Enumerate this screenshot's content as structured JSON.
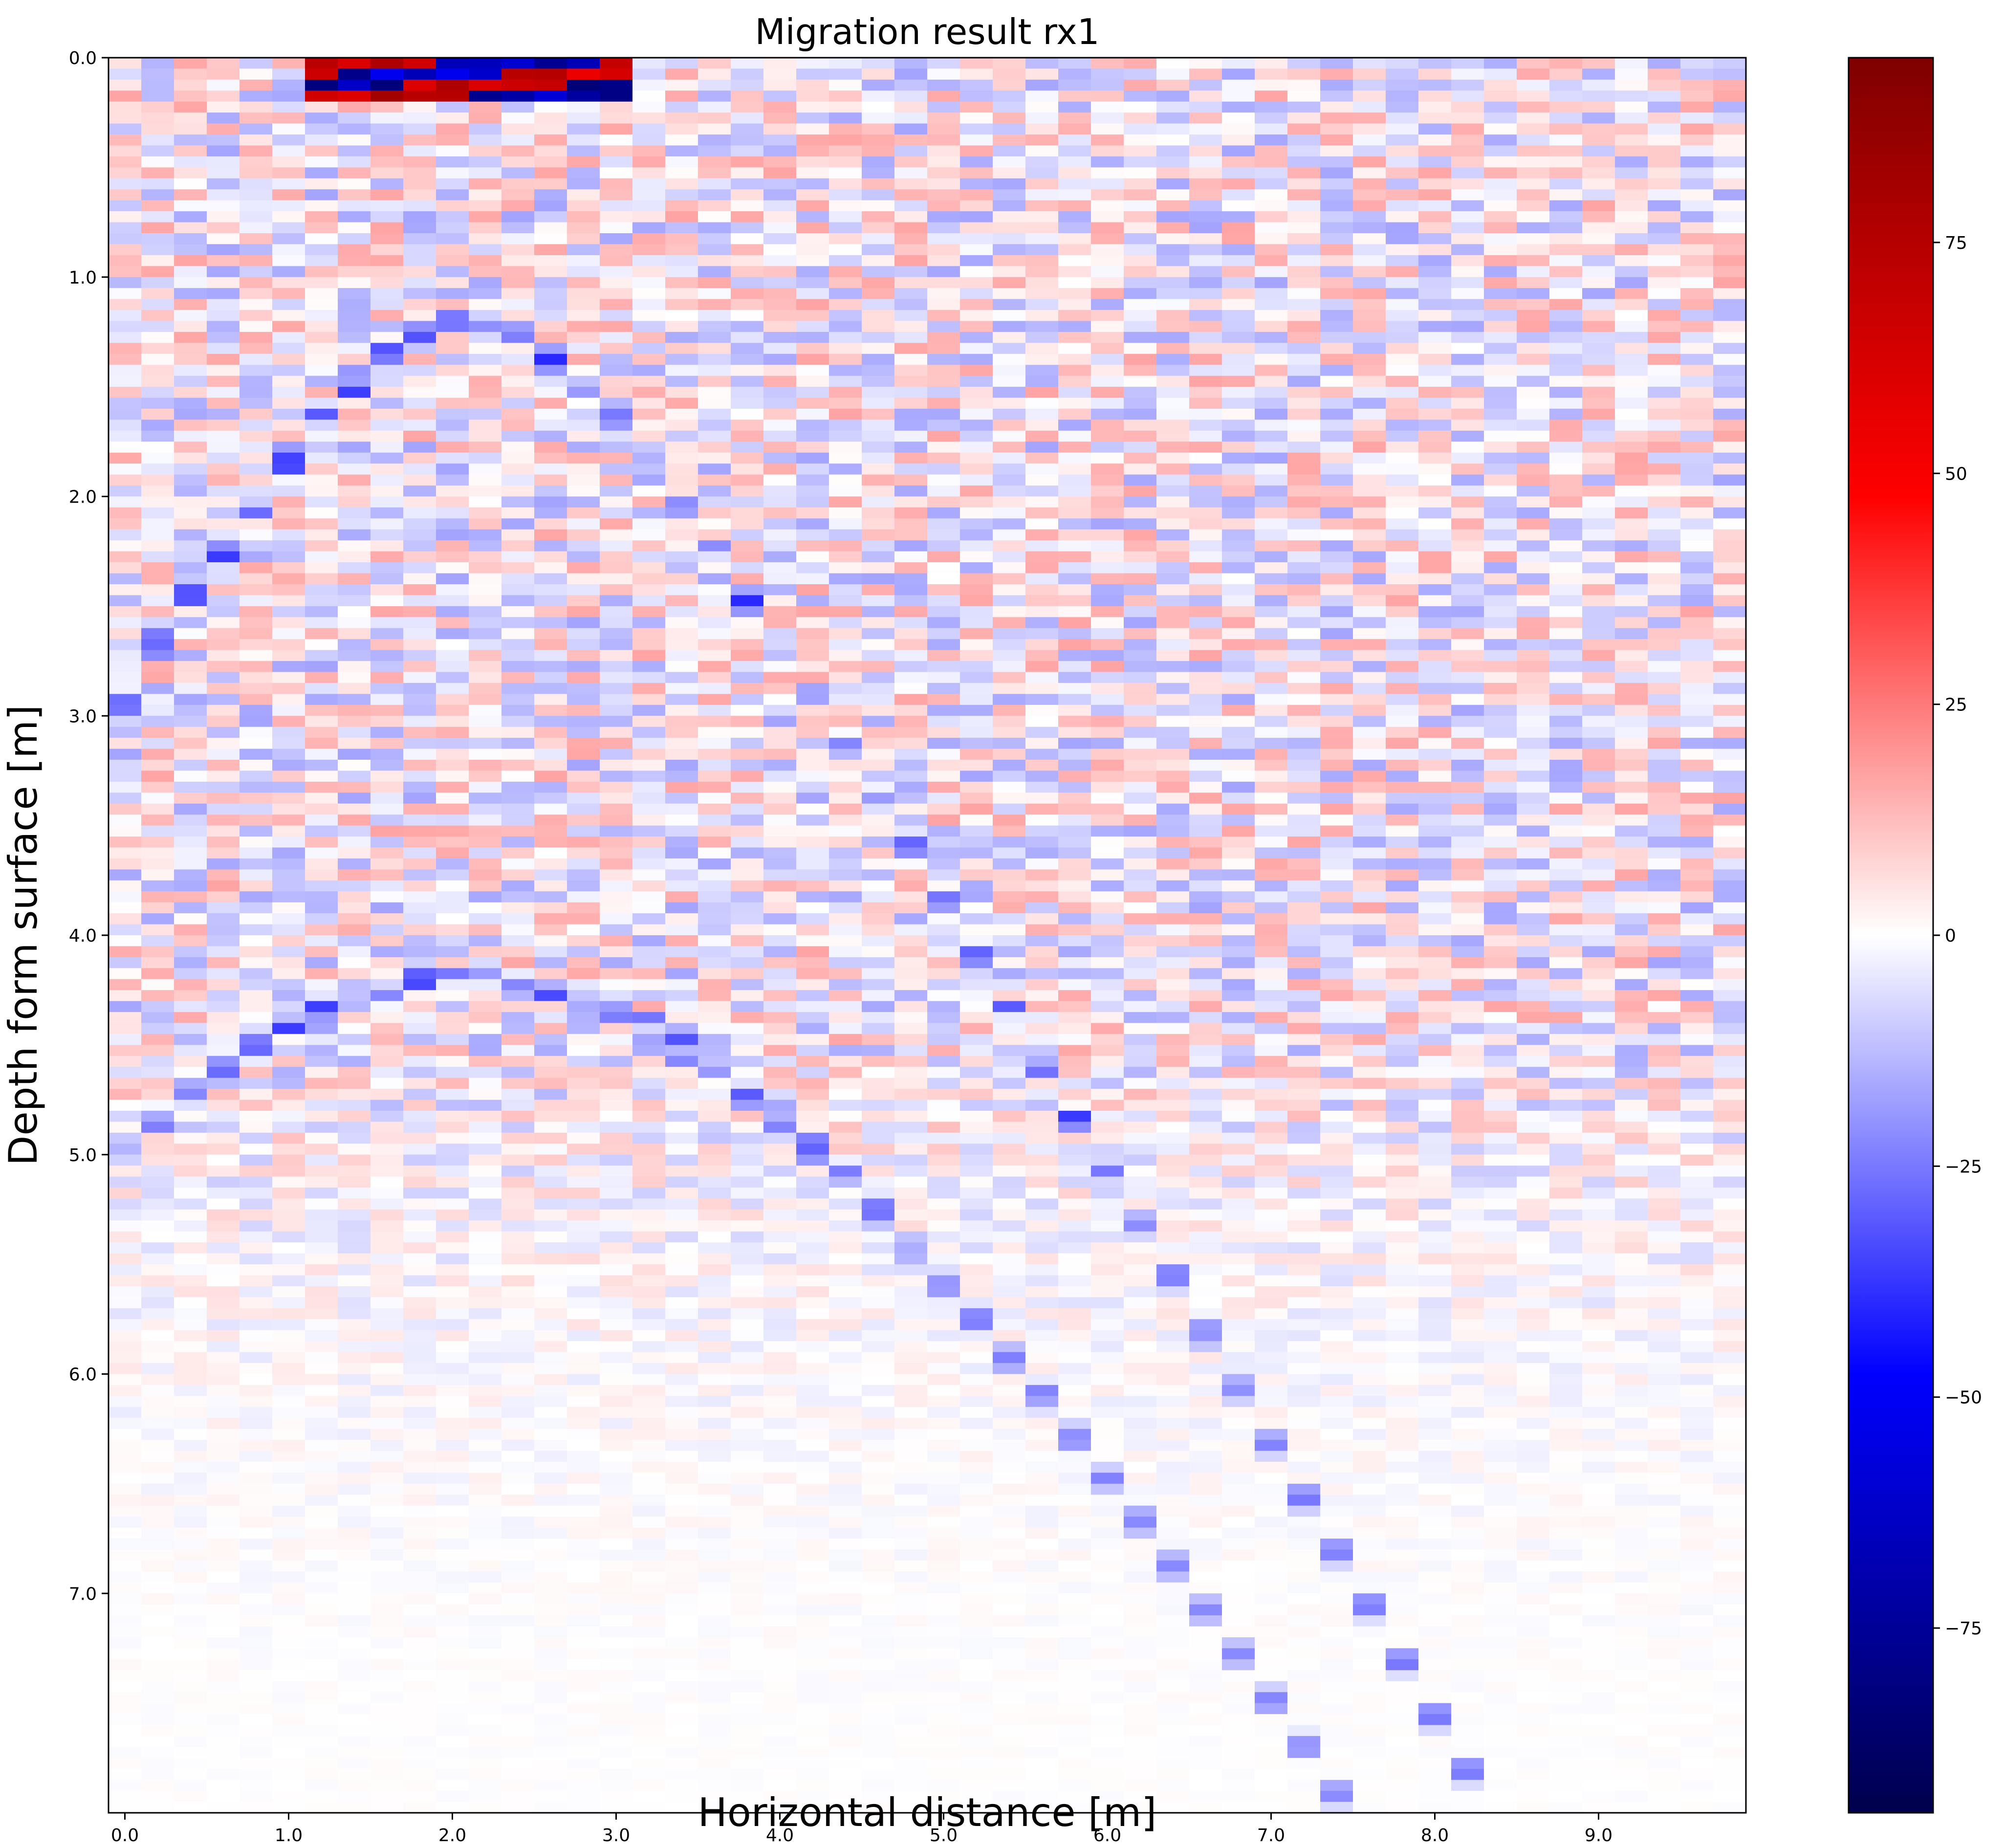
{
  "chart_data": {
    "type": "heatmap",
    "title": "Migration result rx1",
    "xlabel": "Horizontal distance [m]",
    "ylabel": "Depth form surface [m]",
    "xlim": [
      -0.1,
      9.9
    ],
    "ylim": [
      8.0,
      0.0
    ],
    "x_ticks": [
      0.0,
      1.0,
      2.0,
      3.0,
      4.0,
      5.0,
      6.0,
      7.0,
      8.0,
      9.0
    ],
    "x_tick_labels": [
      "0.0",
      "1.0",
      "2.0",
      "3.0",
      "4.0",
      "5.0",
      "6.0",
      "7.0",
      "8.0",
      "9.0"
    ],
    "y_ticks": [
      0.0,
      1.0,
      2.0,
      3.0,
      4.0,
      5.0,
      6.0,
      7.0
    ],
    "y_tick_labels": [
      "0.0",
      "1.0",
      "2.0",
      "3.0",
      "4.0",
      "5.0",
      "6.0",
      "7.0"
    ],
    "colorbar": {
      "colormap": "seismic",
      "vmin": -95,
      "vmax": 95,
      "ticks": [
        75,
        50,
        25,
        0,
        -25,
        -50,
        -75
      ],
      "tick_labels": [
        "75",
        "50",
        "25",
        "0",
        "−25",
        "−50",
        "−75"
      ],
      "colors": [
        "#00004c",
        "#0000ff",
        "#ffffff",
        "#ff0000",
        "#7f0000"
      ]
    },
    "grid": false,
    "trace_spacing": 0.2,
    "features": [
      {
        "kind": "hyperbola",
        "apex_x": 2.1,
        "apex_y": 4.2,
        "amplitude": -22
      },
      {
        "kind": "hyperbola",
        "apex_x": 2.1,
        "apex_y": 1.2,
        "amplitude": -25
      },
      {
        "kind": "strong-surface-band",
        "x_range": [
          1.1,
          3.1
        ],
        "y_range": [
          0.0,
          0.2
        ],
        "amplitude": 85
      }
    ]
  }
}
